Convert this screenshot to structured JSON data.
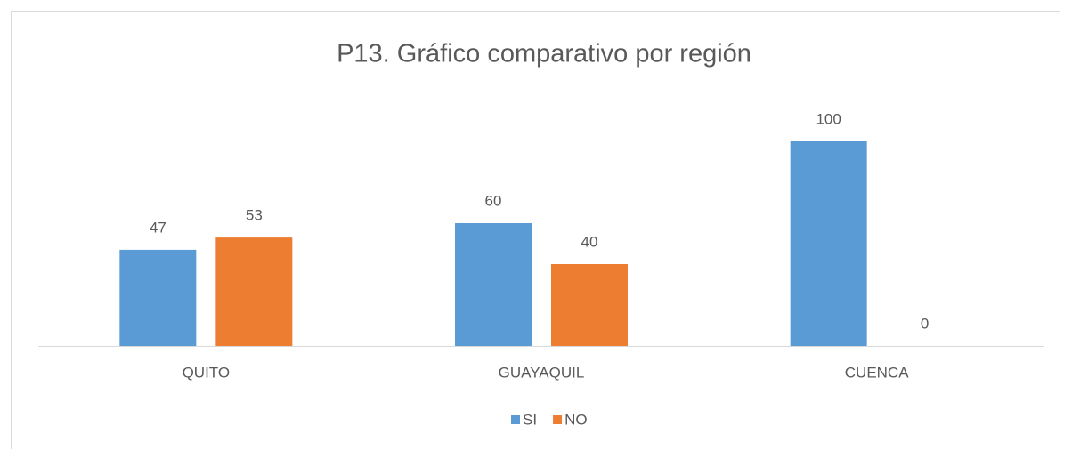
{
  "chart_data": {
    "type": "bar",
    "title": "P13. Gráfico comparativo por región",
    "categories": [
      "QUITO",
      "GUAYAQUIL",
      "CUENCA"
    ],
    "series": [
      {
        "name": "SI",
        "color": "#5b9bd5",
        "values": [
          47,
          60,
          100
        ]
      },
      {
        "name": "NO",
        "color": "#ed7d31",
        "values": [
          53,
          40,
          0
        ]
      }
    ],
    "legend": "bottom"
  }
}
